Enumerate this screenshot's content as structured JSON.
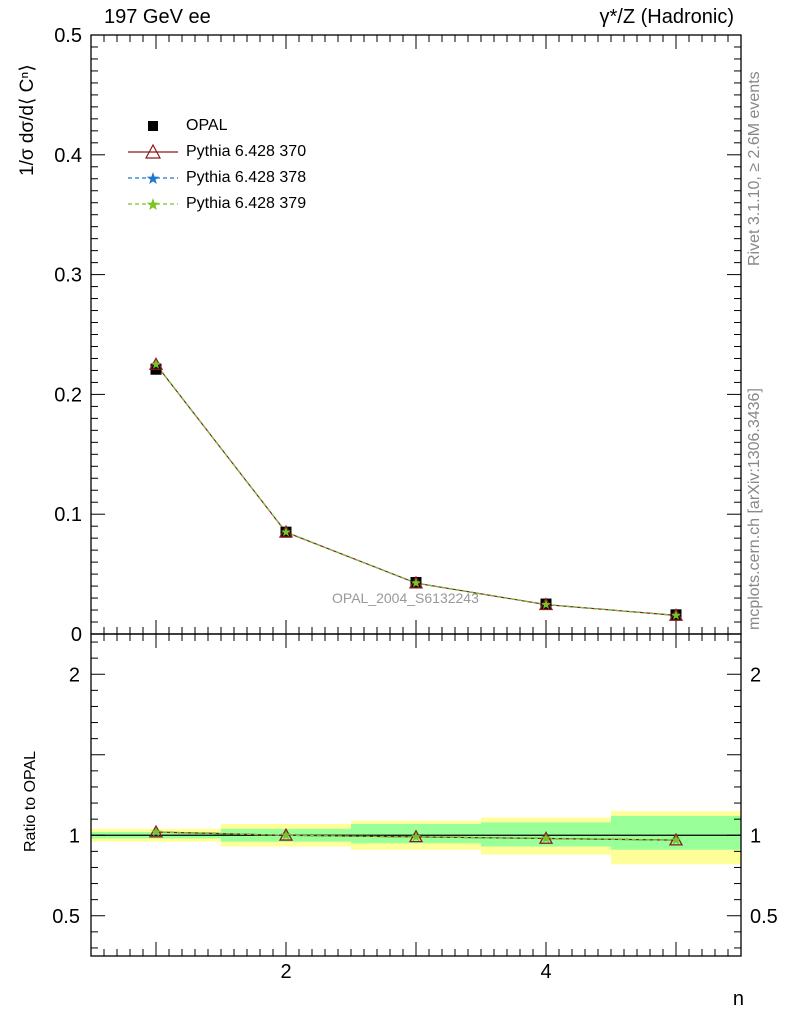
{
  "header": {
    "left": "197 GeV ee",
    "right": "γ*/Z (Hadronic)"
  },
  "side": {
    "rivet": "Rivet 3.1.10, ≥ 2.6M events",
    "mcplots": "mcplots.cern.ch [arXiv:1306.3436]"
  },
  "watermark": "OPAL_2004_S6132243",
  "chart_data": [
    {
      "type": "line",
      "ylabel": "1/σ dσ/d⟨ Cⁿ⟩",
      "ylim": [
        0,
        0.5
      ],
      "yticks": [
        0,
        0.1,
        0.2,
        0.3,
        0.4,
        0.5
      ],
      "ytick_labels": [
        "0",
        "0.1",
        "0.2",
        "0.3",
        "0.4",
        "0.5"
      ],
      "xlim": [
        0.5,
        5.5
      ],
      "x": [
        1,
        2,
        3,
        4,
        5
      ],
      "series": [
        {
          "name": "OPAL",
          "values": [
            0.221,
            0.085,
            0.043,
            0.025,
            0.016
          ],
          "color": "#000000",
          "marker": "square"
        },
        {
          "name": "Pythia 6.428 370",
          "values": [
            0.225,
            0.085,
            0.0425,
            0.0245,
            0.0155
          ],
          "color": "#8b1a1a",
          "marker": "triangle"
        },
        {
          "name": "Pythia 6.428 378",
          "values": [
            0.225,
            0.085,
            0.0425,
            0.0245,
            0.0155
          ],
          "color": "#1f77d0",
          "marker": "star"
        },
        {
          "name": "Pythia 6.428 379",
          "values": [
            0.225,
            0.085,
            0.0425,
            0.0245,
            0.0155
          ],
          "color": "#7ac520",
          "marker": "star"
        }
      ],
      "legend": "top-left",
      "grid": false
    },
    {
      "type": "line",
      "ylabel": "Ratio to OPAL",
      "xlabel": "n",
      "ylim": [
        0.25,
        2.25
      ],
      "yticks": [
        0.5,
        1,
        2
      ],
      "ytick_labels": [
        "0.5",
        "1",
        "2"
      ],
      "xlim": [
        0.5,
        5.5
      ],
      "xticks": [
        2,
        4
      ],
      "xtick_labels": [
        "2",
        "4"
      ],
      "x": [
        1,
        2,
        3,
        4,
        5
      ],
      "bins": [
        [
          0.5,
          1.5
        ],
        [
          1.5,
          2.5
        ],
        [
          2.5,
          3.5
        ],
        [
          3.5,
          4.5
        ],
        [
          4.5,
          5.5
        ]
      ],
      "band_inner": [
        [
          0.98,
          1.02
        ],
        [
          0.96,
          1.04
        ],
        [
          0.95,
          1.07
        ],
        [
          0.93,
          1.08
        ],
        [
          0.91,
          1.12
        ]
      ],
      "band_outer": [
        [
          0.96,
          1.04
        ],
        [
          0.93,
          1.07
        ],
        [
          0.91,
          1.09
        ],
        [
          0.88,
          1.11
        ],
        [
          0.82,
          1.15
        ]
      ],
      "band_colors": {
        "inner": "#99ff99",
        "outer": "#ffff99"
      },
      "series": [
        {
          "name": "Pythia 6.428 370",
          "values": [
            1.02,
            1.0,
            0.99,
            0.98,
            0.97
          ],
          "color": "#8b1a1a",
          "marker": "triangle"
        },
        {
          "name": "Pythia 6.428 378",
          "values": [
            1.02,
            1.0,
            0.99,
            0.98,
            0.97
          ],
          "color": "#1f77d0",
          "marker": "star"
        },
        {
          "name": "Pythia 6.428 379",
          "values": [
            1.02,
            1.0,
            0.99,
            0.98,
            0.97
          ],
          "color": "#7ac520",
          "marker": "star"
        }
      ]
    }
  ]
}
